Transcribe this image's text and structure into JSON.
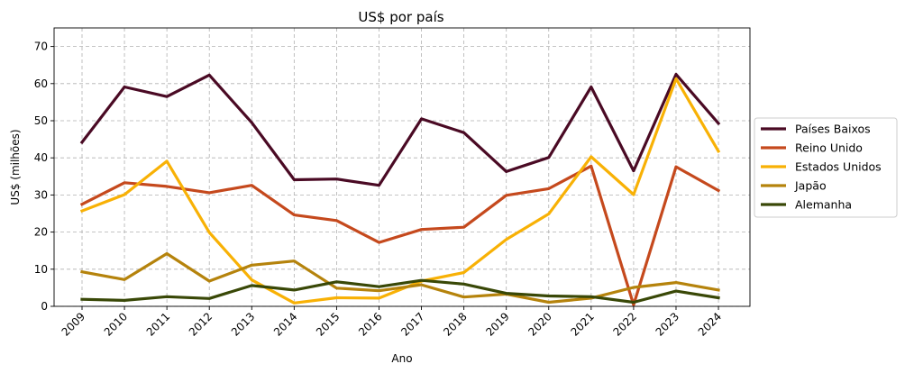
{
  "chart_data": {
    "type": "line",
    "title": "US$ por país",
    "xlabel": "Ano",
    "ylabel": "US$ (milhões)",
    "x": [
      "2009",
      "2010",
      "2011",
      "2012",
      "2013",
      "2014",
      "2015",
      "2016",
      "2017",
      "2018",
      "2019",
      "2020",
      "2021",
      "2022",
      "2023",
      "2024"
    ],
    "ylim": [
      0,
      75
    ],
    "yticks": [
      0,
      10,
      20,
      30,
      40,
      50,
      60,
      70
    ],
    "grid": true,
    "legend_position": "right",
    "series": [
      {
        "name": "Países Baixos",
        "color": "#4a0a24",
        "values": [
          44.2,
          59.1,
          56.5,
          62.3,
          49.5,
          34.1,
          34.3,
          32.6,
          50.5,
          46.8,
          36.3,
          40.1,
          59.1,
          36.5,
          62.5,
          49.3
        ]
      },
      {
        "name": "Reino Unido",
        "color": "#c5491d",
        "values": [
          27.5,
          33.3,
          32.3,
          30.6,
          32.6,
          24.6,
          23.1,
          17.2,
          20.7,
          21.3,
          29.9,
          31.7,
          37.8,
          0.4,
          37.6,
          31.2
        ]
      },
      {
        "name": "Estados Unidos",
        "color": "#f8b105",
        "values": [
          25.7,
          30.1,
          39.1,
          19.9,
          7.1,
          0.9,
          2.3,
          2.2,
          6.8,
          9.1,
          18.0,
          24.9,
          40.3,
          30.1,
          61.3,
          41.8
        ]
      },
      {
        "name": "Japão",
        "color": "#b5830c",
        "values": [
          9.3,
          7.2,
          14.2,
          6.8,
          11.1,
          12.2,
          4.9,
          4.2,
          5.8,
          2.5,
          3.3,
          1.1,
          2.2,
          5.1,
          6.4,
          4.4
        ]
      },
      {
        "name": "Alemanha",
        "color": "#394807",
        "values": [
          1.9,
          1.6,
          2.6,
          2.1,
          5.6,
          4.4,
          6.6,
          5.3,
          7.0,
          6.0,
          3.5,
          2.8,
          2.6,
          1.1,
          4.1,
          2.3
        ]
      }
    ]
  }
}
